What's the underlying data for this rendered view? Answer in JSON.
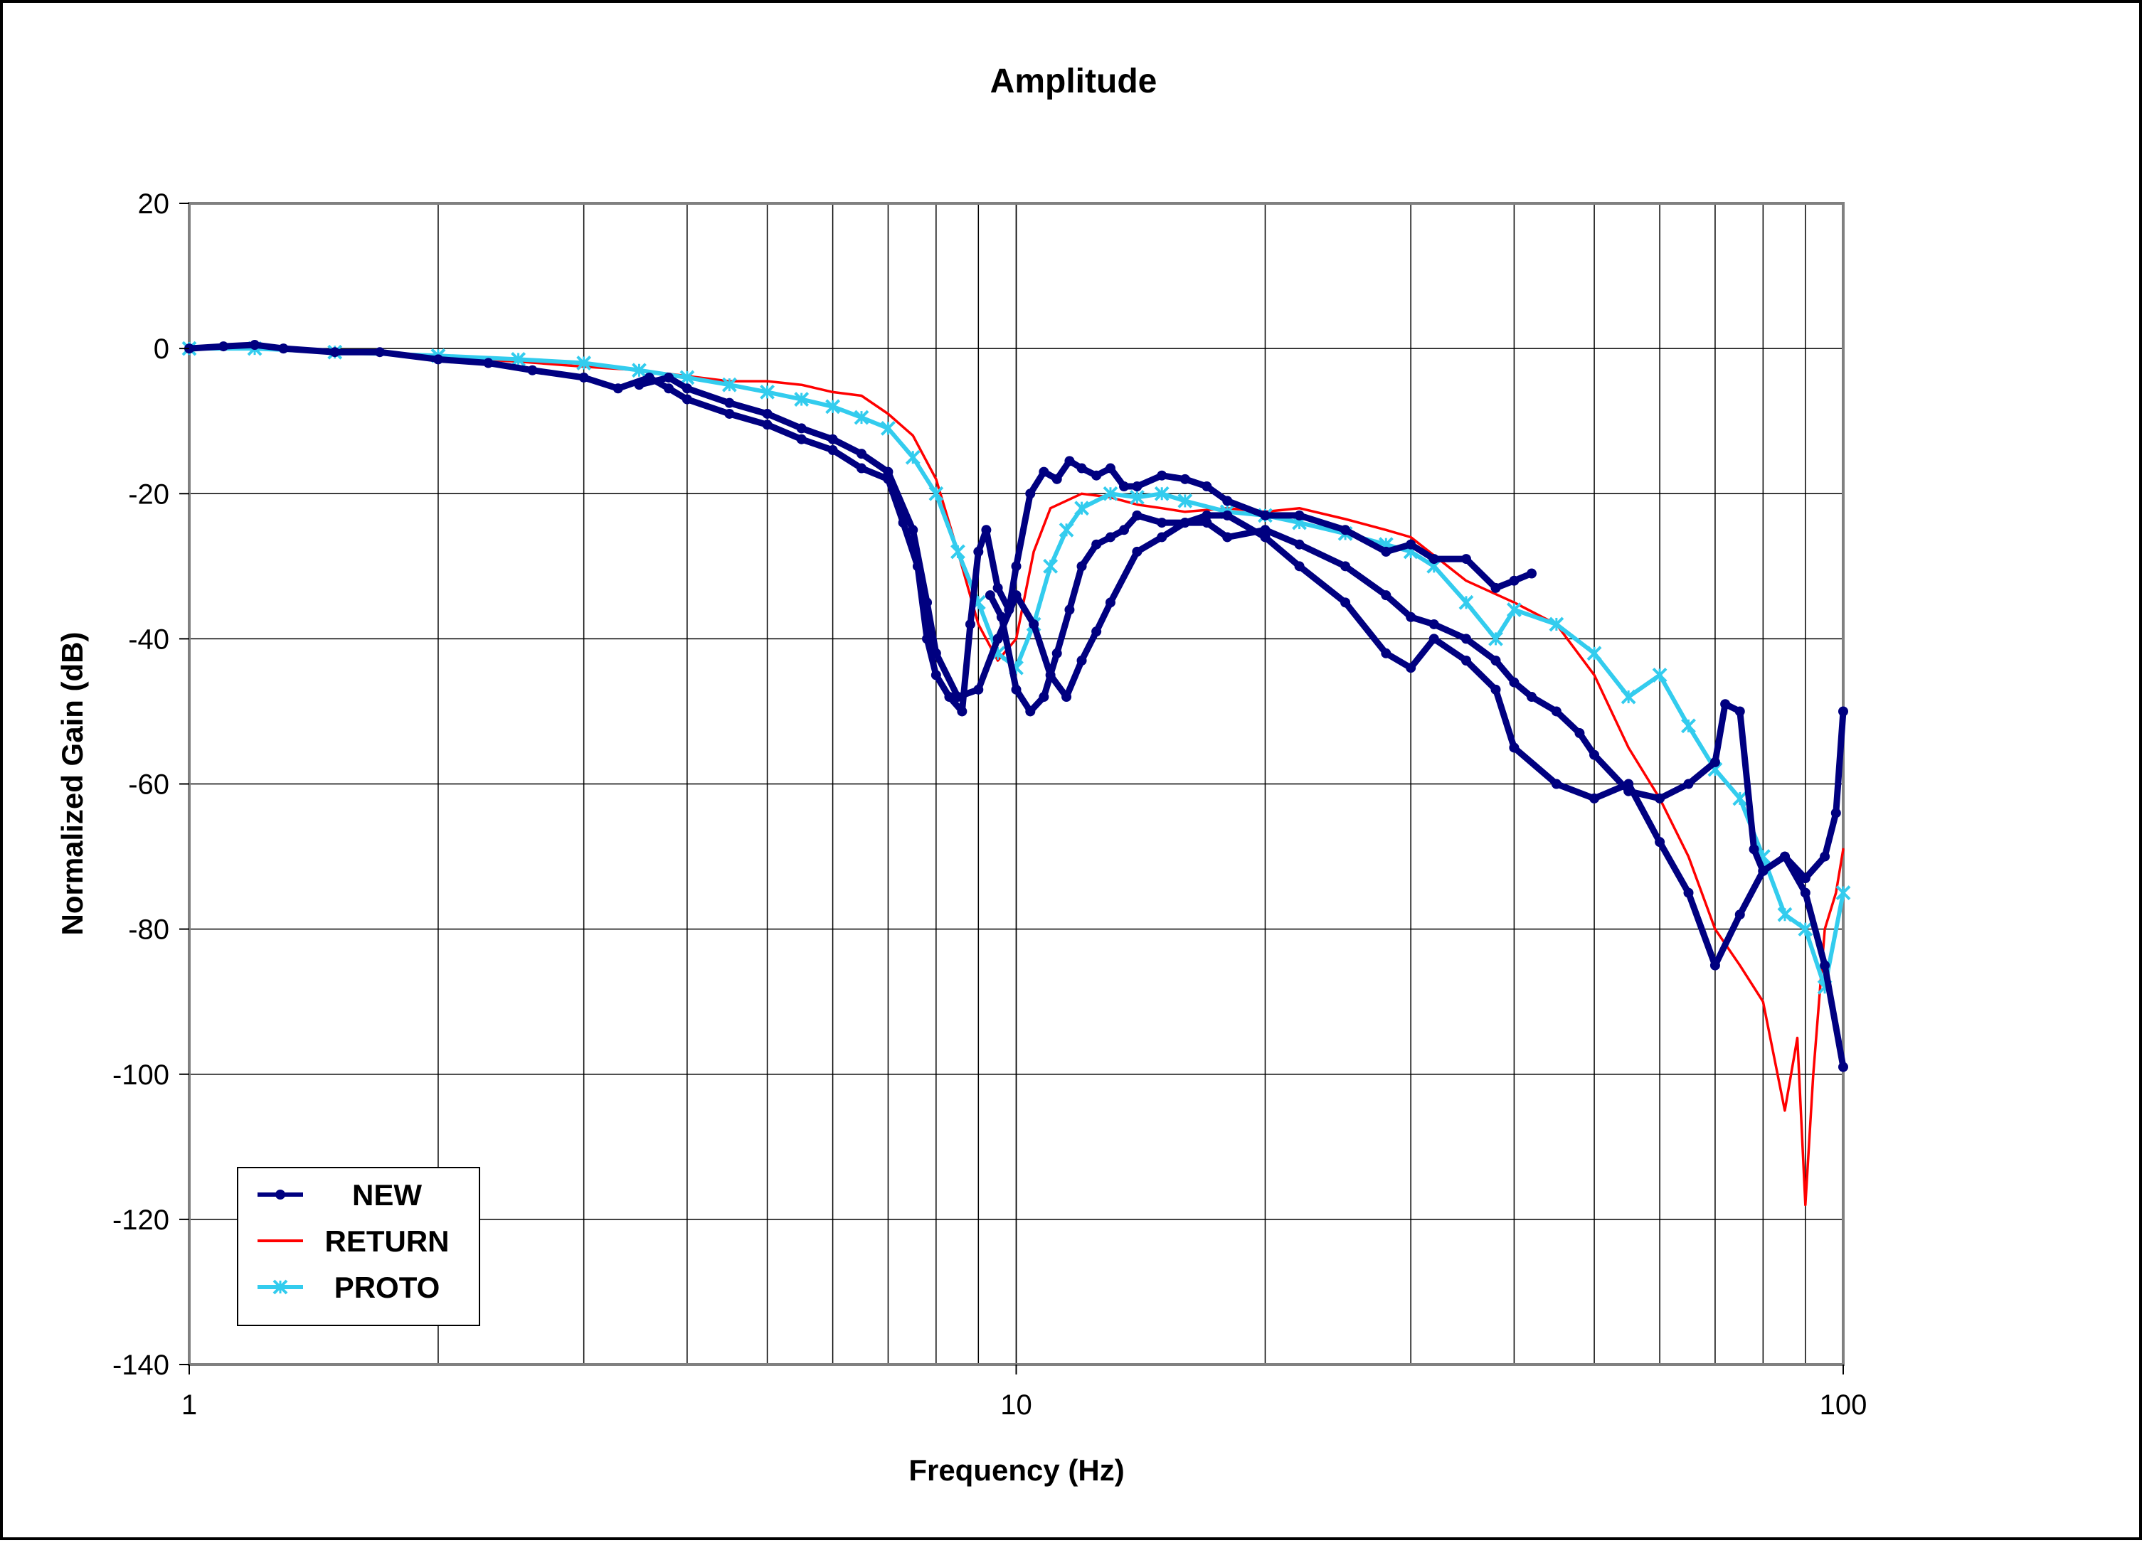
{
  "chart_data": {
    "type": "line",
    "title": "Amplitude",
    "xlabel": "Frequency (Hz)",
    "ylabel": "Normalized Gain (dB)",
    "xscale": "log",
    "xlim": [
      1,
      100
    ],
    "ylim": [
      -140,
      20
    ],
    "grid": true,
    "legend_position": "bottom-left",
    "xticks": [
      {
        "value": 1,
        "label": "1"
      },
      {
        "value": 10,
        "label": "10"
      },
      {
        "value": 100,
        "label": "100"
      }
    ],
    "yticks": [
      {
        "value": 20,
        "label": "20"
      },
      {
        "value": 0,
        "label": "0"
      },
      {
        "value": -20,
        "label": "-20"
      },
      {
        "value": -40,
        "label": "-40"
      },
      {
        "value": -60,
        "label": "-60"
      },
      {
        "value": -80,
        "label": "-80"
      },
      {
        "value": -100,
        "label": "-100"
      },
      {
        "value": -120,
        "label": "-120"
      },
      {
        "value": -140,
        "label": "-140"
      }
    ],
    "series": [
      {
        "name": "NEW",
        "color": "#000080",
        "marker": "circle",
        "traces": [
          {
            "x": [
              1,
              1.1,
              1.2,
              1.3,
              1.5,
              1.7,
              2.0,
              2.3,
              2.6,
              3.0,
              3.3,
              3.6,
              3.8,
              4.0,
              4.5,
              5.0,
              5.5,
              6.0,
              6.5,
              7.0,
              7.3,
              7.6,
              7.8,
              8.0,
              8.3,
              8.6,
              8.8,
              9.0,
              9.2,
              9.5,
              9.8,
              10.0,
              10.4,
              10.8,
              11.2,
              11.6,
              12.0,
              12.5,
              13.0,
              13.5,
              14.0,
              15.0,
              16.0,
              17.0,
              18.0,
              20.0,
              22.0,
              25.0,
              28.0,
              30.0,
              32.0,
              35.0,
              38.0,
              40.0,
              42.0
            ],
            "y": [
              0,
              0.3,
              0.5,
              0,
              -0.5,
              -0.5,
              -1.5,
              -2.0,
              -3.0,
              -4.0,
              -5.5,
              -4.0,
              -5.5,
              -7.0,
              -9.0,
              -10.5,
              -12.5,
              -14.0,
              -16.5,
              -18.0,
              -24.0,
              -30.0,
              -40.0,
              -45.0,
              -48.0,
              -50.0,
              -38.0,
              -28.0,
              -25.0,
              -33.0,
              -36.0,
              -30.0,
              -20.0,
              -17.0,
              -18.0,
              -15.5,
              -16.5,
              -17.5,
              -16.5,
              -19.0,
              -19.0,
              -17.5,
              -18.0,
              -19.0,
              -21.0,
              -23.0,
              -23.0,
              -25.0,
              -28.0,
              -27.0,
              -29.0,
              -29.0,
              -33.0,
              -32.0,
              -31.0
            ]
          },
          {
            "x": [
              9.3,
              9.6,
              10.0,
              10.4,
              10.8,
              11.2,
              11.6,
              12.0,
              12.5,
              13.0,
              13.5,
              14.0,
              15.0,
              16.0,
              17.0,
              18.0,
              20.0,
              22.0,
              25.0,
              28.0,
              30.0,
              32.0,
              35.0,
              38.0,
              40.0,
              42.0,
              45.0,
              48.0,
              50.0,
              55.0,
              60.0,
              65.0,
              70.0,
              72.0,
              75.0,
              78.0,
              80.0,
              85.0,
              90.0,
              95.0,
              98.0,
              100.0
            ],
            "y": [
              -34,
              -37,
              -47,
              -50,
              -48,
              -42,
              -36,
              -30,
              -27,
              -26,
              -25,
              -23,
              -24,
              -24,
              -24,
              -26,
              -25,
              -27,
              -30,
              -34,
              -37,
              -38,
              -40,
              -43,
              -46,
              -48,
              -50,
              -53,
              -56,
              -61,
              -62,
              -60,
              -57,
              -49,
              -50,
              -69,
              -72,
              -70,
              -73,
              -70,
              -64,
              -50
            ]
          },
          {
            "x": [
              3.5,
              3.8,
              4.0,
              4.5,
              5.0,
              5.5,
              6.0,
              6.5,
              7.0,
              7.5,
              7.8,
              8.0,
              8.5,
              9.0,
              9.5,
              10.0,
              10.5,
              11.0,
              11.5,
              12.0,
              12.5,
              13.0,
              14.0,
              15.0,
              16.0,
              17.0,
              18.0,
              20.0,
              22.0,
              25.0,
              28.0,
              30.0,
              32.0,
              35.0,
              38.0,
              40.0,
              45.0,
              50.0,
              55.0,
              60.0,
              65.0,
              70.0,
              75.0,
              80.0,
              85.0,
              90.0,
              95.0,
              100.0
            ],
            "y": [
              -5,
              -4,
              -5.5,
              -7.5,
              -9,
              -11,
              -12.5,
              -14.5,
              -17,
              -25,
              -35,
              -42,
              -48,
              -47,
              -40,
              -34,
              -38,
              -45,
              -48,
              -43,
              -39,
              -35,
              -28,
              -26,
              -24,
              -23,
              -23,
              -26,
              -30,
              -35,
              -42,
              -44,
              -40,
              -43,
              -47,
              -55,
              -60,
              -62,
              -60,
              -68,
              -75,
              -85,
              -78,
              -72,
              -70,
              -75,
              -85,
              -99
            ]
          }
        ]
      },
      {
        "name": "RETURN",
        "color": "#ff0000",
        "marker": "none",
        "traces": [
          {
            "x": [
              1,
              1.2,
              1.5,
              2.0,
              2.5,
              3.0,
              3.5,
              4.0,
              4.5,
              5.0,
              5.5,
              6.0,
              6.5,
              7.0,
              7.5,
              8.0,
              8.5,
              9.0,
              9.5,
              10.0,
              10.5,
              11.0,
              12.0,
              13.0,
              14.0,
              15.0,
              16.0,
              18.0,
              20.0,
              22.0,
              25.0,
              28.0,
              30.0,
              35.0,
              40.0,
              45.0,
              50.0,
              55.0,
              60.0,
              65.0,
              70.0,
              75.0,
              80.0,
              85.0,
              88.0,
              90.0,
              92.0,
              95.0,
              98.0,
              100.0
            ],
            "y": [
              0,
              0,
              -0.5,
              -1.2,
              -1.8,
              -2.5,
              -3.0,
              -3.8,
              -4.5,
              -4.5,
              -5.0,
              -6.0,
              -6.5,
              -9.0,
              -12.0,
              -18.0,
              -28.0,
              -38.0,
              -43.0,
              -40.0,
              -28.0,
              -22.0,
              -20.0,
              -20.5,
              -21.5,
              -22.0,
              -22.5,
              -22.0,
              -22.5,
              -22.0,
              -23.5,
              -25.0,
              -26.0,
              -32.0,
              -35.0,
              -38.0,
              -45.0,
              -55.0,
              -62.0,
              -70.0,
              -80.0,
              -85.0,
              -90.0,
              -105.0,
              -95.0,
              -118.0,
              -100.0,
              -80.0,
              -75.0,
              -69.0
            ]
          }
        ]
      },
      {
        "name": "PROTO",
        "color": "#33ccee",
        "marker": "x",
        "traces": [
          {
            "x": [
              1,
              1.2,
              1.5,
              2.0,
              2.5,
              3.0,
              3.5,
              4.0,
              4.5,
              5.0,
              5.5,
              6.0,
              6.5,
              7.0,
              7.5,
              8.0,
              8.5,
              9.0,
              9.5,
              10.0,
              10.5,
              11.0,
              11.5,
              12.0,
              13.0,
              14.0,
              15.0,
              16.0,
              18.0,
              20.0,
              22.0,
              25.0,
              28.0,
              30.0,
              32.0,
              35.0,
              38.0,
              40.0,
              45.0,
              50.0,
              55.0,
              60.0,
              65.0,
              70.0,
              75.0,
              80.0,
              85.0,
              90.0,
              95.0,
              100.0
            ],
            "y": [
              0,
              0,
              -0.5,
              -1.0,
              -1.5,
              -2.0,
              -3.0,
              -4.0,
              -5.0,
              -6.0,
              -7.0,
              -8.0,
              -9.5,
              -11.0,
              -15.0,
              -20.0,
              -28.0,
              -35.0,
              -42.0,
              -44.0,
              -38.0,
              -30.0,
              -25.0,
              -22.0,
              -20.0,
              -20.5,
              -20.0,
              -21.0,
              -22.5,
              -23.0,
              -24.0,
              -25.5,
              -27.0,
              -28.0,
              -30.0,
              -35.0,
              -40.0,
              -36.0,
              -38.0,
              -42.0,
              -48.0,
              -45.0,
              -52.0,
              -58.0,
              -62.0,
              -70.0,
              -78.0,
              -80.0,
              -88.0,
              -75.0
            ]
          }
        ]
      }
    ]
  }
}
